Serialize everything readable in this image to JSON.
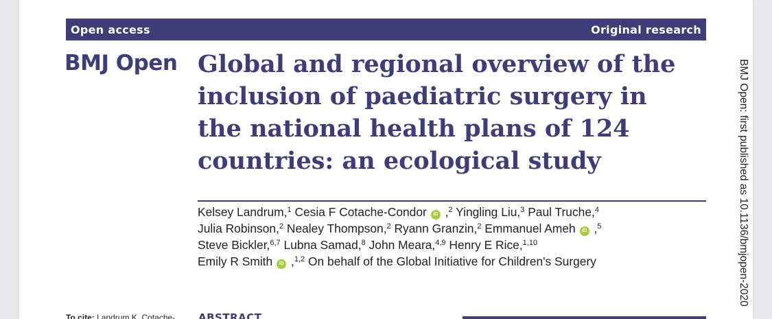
{
  "banner": {
    "left": "Open access",
    "right": "Original research"
  },
  "journal": "BMJ Open",
  "title": "Global and regional overview of the inclusion of paediatric surgery in the national health plans of 124 countries: an ecological study",
  "authors": [
    [
      {
        "name": "Kelsey Landrum,",
        "sup": "1"
      },
      {
        "name": " Cesia F Cotache-Condor",
        "orcid": true,
        "sup": "2",
        "pre_sup": " ,"
      },
      {
        "name": " Yingling Liu,",
        "sup": "3"
      },
      {
        "name": " Paul Truche,",
        "sup": "4"
      }
    ],
    [
      {
        "name": "Julia Robinson,",
        "sup": "2"
      },
      {
        "name": " Nealey Thompson,",
        "sup": "2"
      },
      {
        "name": " Ryann Granzin,",
        "sup": "2"
      },
      {
        "name": " Emmanuel Ameh",
        "orcid": true,
        "sup": "5",
        "pre_sup": " ,"
      }
    ],
    [
      {
        "name": "Steve Bickler,",
        "sup": "6,7"
      },
      {
        "name": " Lubna Samad,",
        "sup": "8"
      },
      {
        "name": " John Meara,",
        "sup": "4,9"
      },
      {
        "name": " Henry E Rice,",
        "sup": "1,10"
      }
    ],
    [
      {
        "name": "Emily R Smith",
        "orcid": true,
        "sup": "1,2",
        "pre_sup": " ,"
      },
      {
        "name": " On behalf of the Global Initiative for Children's Surgery",
        "sup": ""
      }
    ]
  ],
  "side_note": "BMJ Open: first published as 10.1136/bmjopen-2020",
  "to_cite": {
    "label": "To cite:",
    "text": " Landrum K, Cotache-"
  },
  "section_heading": "ABSTRACT",
  "colors": {
    "brand": "#3e3d7a",
    "orcid": "#a6ce39"
  },
  "icons": {
    "orcid": "orcid-icon"
  }
}
